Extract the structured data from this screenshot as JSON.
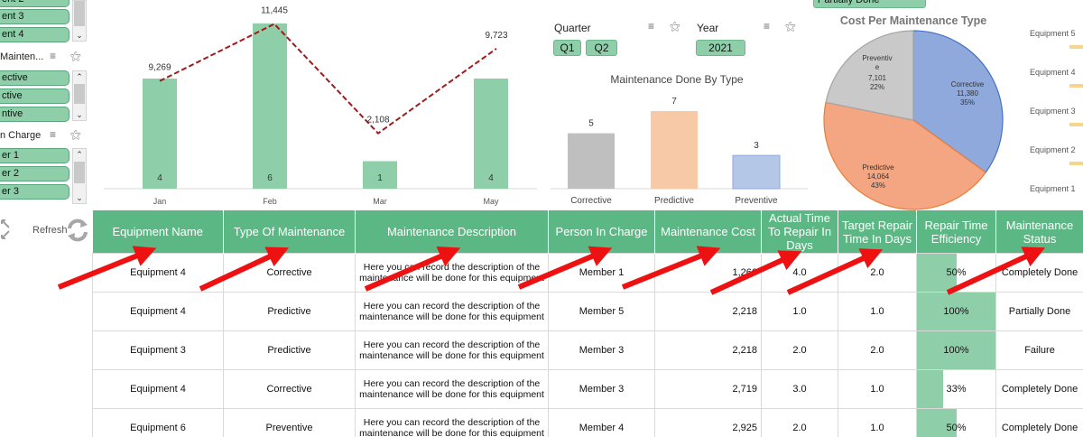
{
  "slicers": {
    "equipment": {
      "items": [
        "ent 2",
        "ent 3",
        "ent 4"
      ]
    },
    "maintenance": {
      "title": "Mainten...",
      "items": [
        "ective",
        "ctive",
        "ntive"
      ]
    },
    "person": {
      "title": "n Charge",
      "items": [
        "er 1",
        "er 2",
        "er 3"
      ]
    },
    "quarter": {
      "label": "Quarter",
      "items": [
        "Q1",
        "Q2"
      ]
    },
    "year": {
      "label": "Year",
      "items": [
        "2021"
      ]
    },
    "status": {
      "items": [
        "Partially Done"
      ]
    },
    "refresh_label": "Refresh"
  },
  "chart_data": [
    {
      "type": "bar",
      "title": "",
      "categories": [
        "Jan",
        "Feb",
        "Mar",
        "May"
      ],
      "series": [
        {
          "type": "bar",
          "values": [
            4,
            6,
            1,
            4
          ]
        },
        {
          "type": "line",
          "values": [
            9269,
            11445,
            2108,
            9723
          ]
        }
      ],
      "line_labels": [
        "9,269",
        "11,445",
        "2,108",
        "9,723"
      ],
      "bar_labels": [
        "4",
        "6",
        "1",
        "4"
      ],
      "colors": {
        "bar": "#8ecfaa",
        "line": "#a01c1c"
      }
    },
    {
      "type": "bar",
      "title": "Maintenance Done By Type",
      "categories": [
        "Corrective",
        "Predictive",
        "Preventive"
      ],
      "values": [
        5,
        7,
        3
      ],
      "value_labels": [
        "5",
        "7",
        "3"
      ],
      "colors": [
        "#bfbfbf",
        "#f8c9a6",
        "#b4c7e7"
      ]
    },
    {
      "type": "pie",
      "title": "Cost Per Maintenance Type",
      "categories": [
        "Corrective",
        "Predictive",
        "Preventive"
      ],
      "values": [
        11380,
        14064,
        7101
      ],
      "labels": [
        {
          "name": "Corrective",
          "value": "11,380",
          "pct": "35%"
        },
        {
          "name": "Predictive",
          "value": "14,064",
          "pct": "43%"
        },
        {
          "name": "Preventiv\ne",
          "value": "7,101",
          "pct": "22%"
        }
      ],
      "colors": [
        "#8fa9dc",
        "#f4a582",
        "#c9c9c9"
      ]
    }
  ],
  "legend_labels": [
    "Equipment 5",
    "Equipment 4",
    "Equipment 3",
    "Equipment 2",
    "Equipment 1"
  ],
  "table": {
    "headers": [
      "Equipment Name",
      "Type Of Maintenance",
      "Maintenance Description",
      "Person In Charge",
      "Maintenance Cost",
      "Actual Time To Repair In Days",
      "Target Repair Time In Days",
      "Repair Time Efficiency",
      "Maintenance Status"
    ],
    "rows": [
      {
        "equipment": "Equipment 4",
        "type": "Corrective",
        "desc": "Here you can record the description of the maintenance will be done for this equipment",
        "person": "Member 1",
        "cost": "1,266",
        "actual": "4.0",
        "target": "2.0",
        "efficiency": "50%",
        "eff_value": 0.5,
        "status": "Completely Done"
      },
      {
        "equipment": "Equipment 4",
        "type": "Predictive",
        "desc": "Here you can record the description of the maintenance will be done for this equipment",
        "person": "Member 5",
        "cost": "2,218",
        "actual": "1.0",
        "target": "1.0",
        "efficiency": "100%",
        "eff_value": 1.0,
        "status": "Partially Done"
      },
      {
        "equipment": "Equipment 3",
        "type": "Predictive",
        "desc": "Here you can record the description of the maintenance will be done for this equipment",
        "person": "Member 3",
        "cost": "2,218",
        "actual": "2.0",
        "target": "2.0",
        "efficiency": "100%",
        "eff_value": 1.0,
        "status": "Failure"
      },
      {
        "equipment": "Equipment 4",
        "type": "Corrective",
        "desc": "Here you can record the description of the maintenance will be done for this equipment",
        "person": "Member 3",
        "cost": "2,719",
        "actual": "3.0",
        "target": "1.0",
        "efficiency": "33%",
        "eff_value": 0.33,
        "status": "Completely Done"
      },
      {
        "equipment": "Equipment 6",
        "type": "Preventive",
        "desc": "Here you can record the description of the maintenance will be done for this equipment",
        "person": "Member 4",
        "cost": "2,925",
        "actual": "2.0",
        "target": "1.0",
        "efficiency": "50%",
        "eff_value": 0.5,
        "status": "Completely Done"
      }
    ]
  }
}
